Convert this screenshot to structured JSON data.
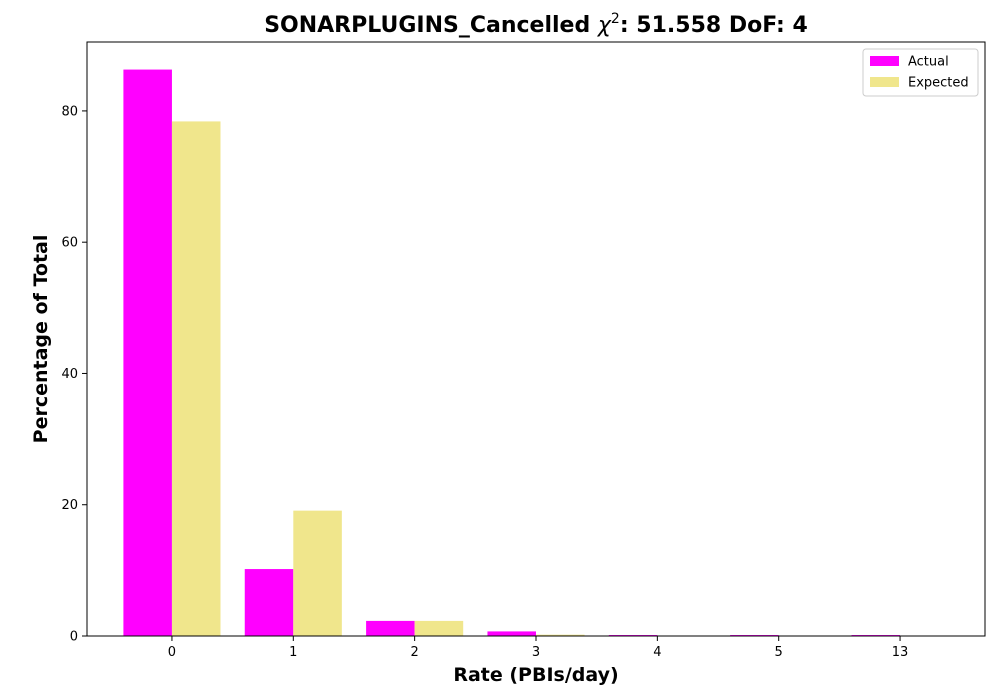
{
  "chart_data": {
    "type": "bar",
    "title_prefix": "SONARPLUGINS_Cancelled ",
    "title_chi": "χ",
    "title_sup": "2",
    "title_suffix": ": 51.558 DoF: 4",
    "xlabel": "Rate (PBIs/day)",
    "ylabel": "Percentage of Total",
    "categories": [
      "0",
      "1",
      "2",
      "3",
      "4",
      "5",
      "13"
    ],
    "ylim": [
      0,
      90.5
    ],
    "yticks": [
      0,
      20,
      40,
      60,
      80
    ],
    "grid": false,
    "legend_position": "top-right",
    "series": [
      {
        "name": "Actual",
        "color": "#ff00ff",
        "values": [
          86.3,
          10.2,
          2.3,
          0.7,
          0.15,
          0.15,
          0.15
        ]
      },
      {
        "name": "Expected",
        "color": "#f0e68c",
        "values": [
          78.4,
          19.1,
          2.3,
          0.2,
          0.0,
          0.0,
          0.0
        ]
      }
    ]
  }
}
